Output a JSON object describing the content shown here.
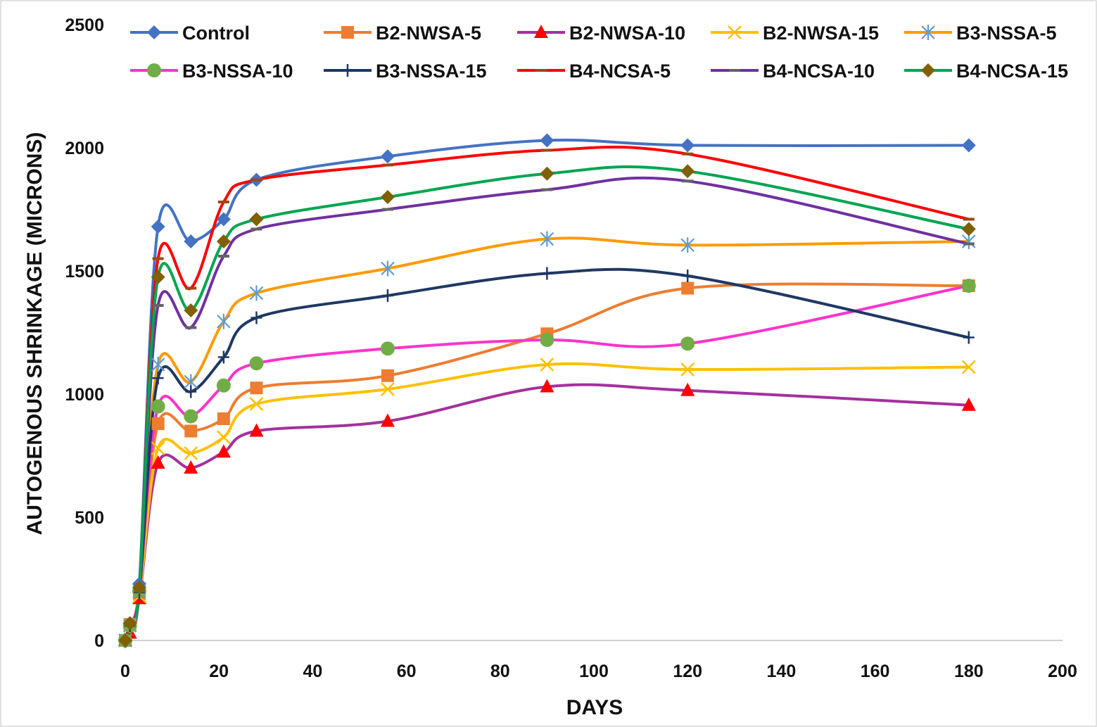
{
  "chart_data": {
    "type": "line",
    "title": "",
    "xlabel": "DAYS",
    "ylabel": "AUTOGENOUS SHRINKAGE (MICRONS)",
    "xlim": [
      0,
      200
    ],
    "ylim": [
      0,
      2500
    ],
    "x_ticks": [
      0,
      20,
      40,
      60,
      80,
      100,
      120,
      140,
      160,
      180,
      200
    ],
    "y_ticks": [
      0,
      500,
      1000,
      1500,
      2000,
      2500
    ],
    "x_tick_labels": [
      "0",
      "20",
      "40",
      "60",
      "80",
      "100",
      "120",
      "140",
      "160",
      "180",
      "200"
    ],
    "y_tick_labels": [
      "0",
      "500",
      "1000",
      "1500",
      "2000",
      "2500"
    ],
    "grid": false,
    "legend_position": "top",
    "x": [
      0,
      1,
      3,
      7,
      14,
      21,
      28,
      56,
      90,
      120,
      180
    ],
    "series": [
      {
        "name": "Control",
        "color": "#4472C4",
        "marker": "diamond",
        "marker_color": "#4472C4",
        "values": [
          0,
          70,
          230,
          1680,
          1620,
          1710,
          1870,
          1965,
          2030,
          2010,
          2010
        ]
      },
      {
        "name": "B2-NWSA-5",
        "color": "#ED7D31",
        "marker": "square",
        "marker_color": "#ED7D31",
        "values": [
          0,
          65,
          190,
          880,
          850,
          900,
          1025,
          1075,
          1245,
          1430,
          1440
        ]
      },
      {
        "name": "B2-NWSA-10",
        "color": "#A5309C",
        "marker": "triangle",
        "marker_color": "#FF0000",
        "values": [
          0,
          30,
          170,
          720,
          700,
          765,
          850,
          890,
          1030,
          1015,
          955
        ]
      },
      {
        "name": "B2-NWSA-15",
        "color": "#FFC000",
        "marker": "x",
        "marker_color": "#FFC000",
        "values": [
          0,
          60,
          180,
          780,
          760,
          825,
          960,
          1020,
          1120,
          1100,
          1110
        ]
      },
      {
        "name": "B3-NSSA-5",
        "color": "#FF9A00",
        "marker": "star",
        "marker_color": "#5B9BD5",
        "values": [
          0,
          60,
          200,
          1120,
          1050,
          1295,
          1410,
          1510,
          1630,
          1605,
          1620
        ]
      },
      {
        "name": "B3-NSSA-10",
        "color": "#FF33CC",
        "marker": "circle",
        "marker_color": "#70AD47",
        "values": [
          0,
          60,
          200,
          950,
          910,
          1035,
          1125,
          1185,
          1220,
          1205,
          1440
        ]
      },
      {
        "name": "B3-NSSA-15",
        "color": "#1F3864",
        "marker": "plus",
        "marker_color": "#1F3864",
        "values": [
          0,
          60,
          195,
          1065,
          1010,
          1150,
          1310,
          1400,
          1490,
          1480,
          1230
        ]
      },
      {
        "name": "B4-NCSA-5",
        "color": "#FF0000",
        "marker": "dash",
        "marker_color": "#9E480E",
        "values": [
          0,
          65,
          210,
          1550,
          1430,
          1780,
          1870,
          1930,
          1990,
          1975,
          1710
        ]
      },
      {
        "name": "B4-NCSA-10",
        "color": "#7030A0",
        "marker": "dash",
        "marker_color": "#636363",
        "values": [
          0,
          60,
          200,
          1360,
          1270,
          1560,
          1670,
          1750,
          1830,
          1865,
          1610
        ]
      },
      {
        "name": "B4-NCSA-15",
        "color": "#00A550",
        "marker": "diamond",
        "marker_color": "#806000",
        "values": [
          0,
          70,
          215,
          1475,
          1340,
          1620,
          1710,
          1800,
          1895,
          1905,
          1670
        ]
      }
    ]
  }
}
